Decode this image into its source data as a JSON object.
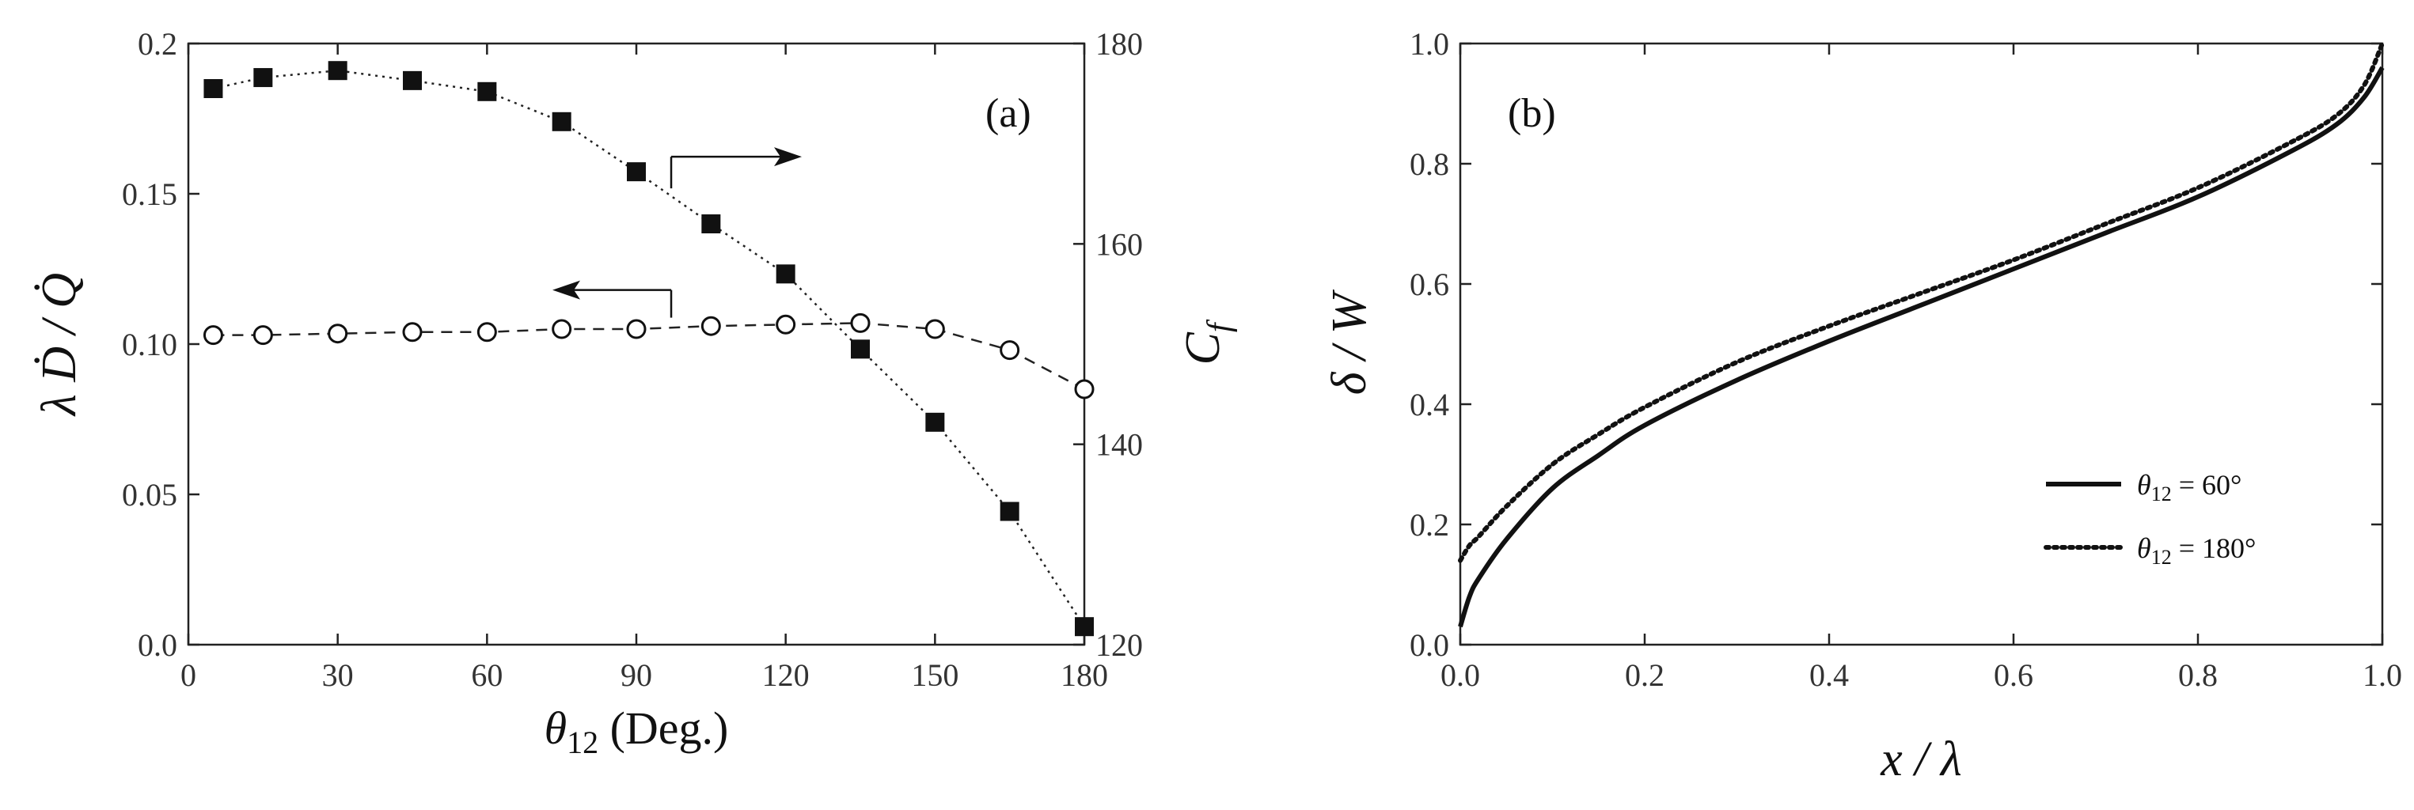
{
  "chart_data": [
    {
      "panel": "(a)",
      "type": "scatter",
      "xlabel_symbol": "θ",
      "xlabel_sub": "12",
      "xlabel_unit": "(Deg.)",
      "ylabel_left": "λ Ḋ / Q̇",
      "ylabel_right_symbol": "C",
      "ylabel_right_sub": "f",
      "xlim": [
        0,
        180
      ],
      "ylim_left": [
        0,
        0.2
      ],
      "ylim_right": [
        120,
        180
      ],
      "xticks": [
        "0",
        "30",
        "60",
        "90",
        "120",
        "150",
        "180"
      ],
      "yticks_left": [
        "0.0",
        "0.05",
        "0.10",
        "0.15",
        "0.2"
      ],
      "yticks_right": [
        "120",
        "140",
        "160",
        "180"
      ],
      "series": [
        {
          "axis": "right",
          "marker": "filled-square",
          "line": "dotted",
          "x": [
            5,
            15,
            30,
            45,
            60,
            75,
            90,
            105,
            120,
            135,
            150,
            165,
            180
          ],
          "y": [
            175.5,
            176.6,
            177.3,
            176.3,
            175.2,
            172.2,
            167.2,
            162.0,
            157.0,
            149.5,
            142.2,
            133.3,
            121.8
          ]
        },
        {
          "axis": "left",
          "marker": "open-circle",
          "line": "dashed",
          "x": [
            5,
            15,
            30,
            45,
            60,
            75,
            90,
            105,
            120,
            135,
            150,
            165,
            180
          ],
          "y": [
            0.103,
            0.103,
            0.1035,
            0.104,
            0.104,
            0.105,
            0.105,
            0.106,
            0.1065,
            0.107,
            0.105,
            0.098,
            0.085
          ]
        }
      ],
      "arrows": [
        {
          "points_to": "right",
          "data_x": 97,
          "data_y_right": 168.7
        },
        {
          "points_to": "left",
          "data_x": 97,
          "data_y_left": 0.118
        }
      ]
    },
    {
      "panel": "(b)",
      "type": "line",
      "xlabel": "x / λ",
      "ylabel": "δ / W",
      "xlim": [
        0,
        1
      ],
      "ylim": [
        0,
        1
      ],
      "xticks": [
        "0.0",
        "0.2",
        "0.4",
        "0.6",
        "0.8",
        "1.0"
      ],
      "yticks": [
        "0.0",
        "0.2",
        "0.4",
        "0.6",
        "0.8",
        "1.0"
      ],
      "legend_position": "bottom-right",
      "series": [
        {
          "name_symbol": "θ",
          "name_sub": "12",
          "name_rest": " = 60°",
          "style": "solid",
          "x": [
            0.0,
            0.01,
            0.02,
            0.05,
            0.1,
            0.15,
            0.2,
            0.3,
            0.4,
            0.5,
            0.6,
            0.7,
            0.8,
            0.9,
            0.95,
            0.98,
            1.0
          ],
          "y": [
            0.03,
            0.08,
            0.11,
            0.175,
            0.26,
            0.315,
            0.365,
            0.44,
            0.505,
            0.565,
            0.625,
            0.685,
            0.745,
            0.82,
            0.865,
            0.91,
            0.96
          ]
        },
        {
          "name_symbol": "θ",
          "name_sub": "12",
          "name_rest": " = 180°",
          "style": "dotted",
          "x": [
            0.0,
            0.01,
            0.02,
            0.05,
            0.1,
            0.15,
            0.2,
            0.3,
            0.4,
            0.5,
            0.6,
            0.7,
            0.8,
            0.9,
            0.95,
            0.98,
            1.0
          ],
          "y": [
            0.14,
            0.165,
            0.18,
            0.23,
            0.3,
            0.35,
            0.395,
            0.47,
            0.53,
            0.585,
            0.64,
            0.7,
            0.76,
            0.835,
            0.88,
            0.93,
            1.0
          ]
        }
      ]
    }
  ]
}
